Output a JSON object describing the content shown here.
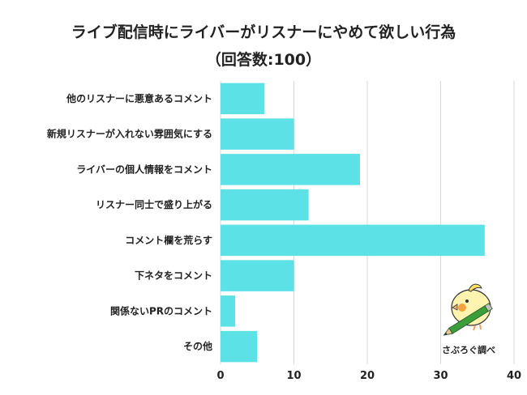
{
  "chart_data": {
    "type": "bar",
    "orientation": "horizontal",
    "title": "ライブ配信時にライバーがリスナーにやめて欲しい行為",
    "subtitle": "（回答数:100）",
    "categories": [
      "他のリスナーに悪意あるコメント",
      "新規リスナーが入れない雰囲気にする",
      "ライバーの個人情報をコメント",
      "リスナー同士で盛り上がる",
      "コメント欄を荒らす",
      "下ネタをコメント",
      "関係ないPRのコメント",
      "その他"
    ],
    "values": [
      6,
      10,
      19,
      12,
      36,
      10,
      2,
      5
    ],
    "xlim": [
      0,
      40
    ],
    "xticks": [
      "0",
      "10",
      "20",
      "30",
      "40"
    ],
    "grid": true,
    "bar_color": "#5ce1e6",
    "xlabel": "",
    "ylabel": ""
  },
  "logo": {
    "text": "さぶろぐ調べ",
    "icon": "bird-with-pencil-icon"
  }
}
